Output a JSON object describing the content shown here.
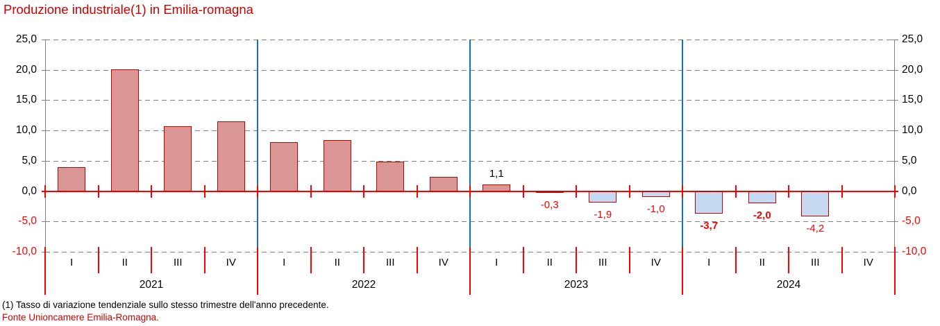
{
  "title": "Produzione industriale(1) in Emilia-romagna",
  "footnotes": {
    "note": "(1) Tasso di variazione tendenziale sullo stesso trimestre dell'anno precedente.",
    "source": "Fonte Unioncamere Emilia-Romagna."
  },
  "colors": {
    "title_red": "#CC0000",
    "positive_fill": "#D99694",
    "negative_fill": "#C5D9F1",
    "bar_border": "#C00000",
    "axis_red": "#FF0000",
    "label_negative": "#FF0000",
    "label_positive": "#000000",
    "gridline_gray": "#808080",
    "plot_border_gray": "#808080",
    "year_separator_blue": "#1272B6"
  },
  "chart_data": {
    "type": "bar",
    "title": "Produzione industriale(1) in Emilia-romagna",
    "xlabel": "",
    "ylabel": "",
    "ylim": [
      -10,
      25
    ],
    "ytick_step": 5,
    "grid": "horizontal-dashed",
    "legend_position": "none",
    "quarter_labels": [
      "I",
      "II",
      "III",
      "IV"
    ],
    "y_ticks": [
      {
        "value": 25,
        "label": "25,0"
      },
      {
        "value": 20,
        "label": "20,0"
      },
      {
        "value": 15,
        "label": "15,0"
      },
      {
        "value": 10,
        "label": "10,0"
      },
      {
        "value": 5,
        "label": "5,0"
      },
      {
        "value": 0,
        "label": "0,0"
      },
      {
        "value": -5,
        "label": "-5,0"
      },
      {
        "value": -10,
        "label": "-10,0"
      }
    ],
    "groups": [
      {
        "year": "2021",
        "values": [
          3.9,
          20.1,
          10.7,
          11.5
        ],
        "labels": [
          null,
          null,
          null,
          null
        ],
        "bold_labels": [
          false,
          false,
          false,
          false
        ]
      },
      {
        "year": "2022",
        "values": [
          8.1,
          8.4,
          4.9,
          2.4
        ],
        "labels": [
          null,
          null,
          null,
          null
        ],
        "bold_labels": [
          false,
          false,
          false,
          false
        ]
      },
      {
        "year": "2023",
        "values": [
          1.1,
          -0.3,
          -1.9,
          -1.0
        ],
        "labels": [
          "1,1",
          "-0,3",
          "-1,9",
          "-1,0"
        ],
        "bold_labels": [
          false,
          false,
          false,
          false
        ]
      },
      {
        "year": "2024",
        "values": [
          -3.7,
          -2.0,
          -4.2,
          null
        ],
        "labels": [
          "-3,7",
          "-2,0",
          "-4,2",
          null
        ],
        "bold_labels": [
          true,
          true,
          false,
          false
        ]
      }
    ]
  }
}
